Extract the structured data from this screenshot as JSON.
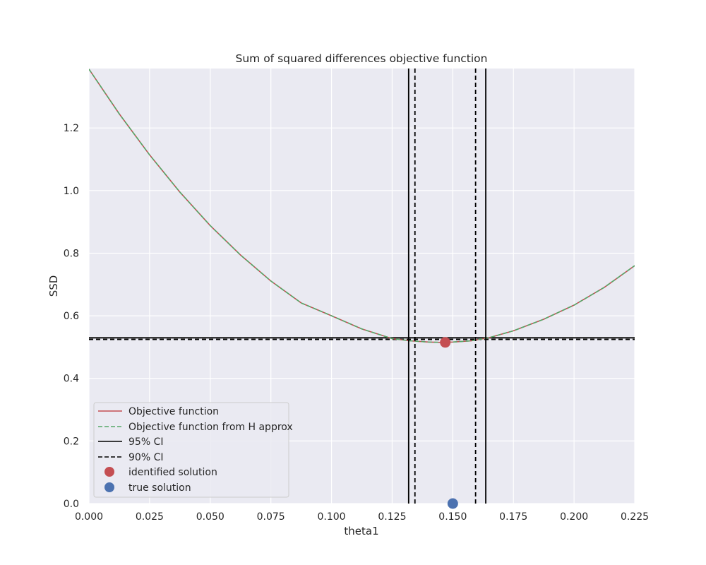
{
  "chart_data": {
    "type": "line",
    "title": "Sum of squared differences objective function",
    "xlabel": "theta1",
    "ylabel": "SSD",
    "xlim": [
      0.0,
      0.225
    ],
    "ylim": [
      0.0,
      1.39
    ],
    "x_ticks": [
      "0.000",
      "0.025",
      "0.050",
      "0.075",
      "0.100",
      "0.125",
      "0.150",
      "0.175",
      "0.200",
      "0.225"
    ],
    "y_ticks": [
      "0.0",
      "0.2",
      "0.4",
      "0.6",
      "0.8",
      "1.0",
      "1.2"
    ],
    "grid": true,
    "legend_position": "lower-left",
    "background_color": "#eaeaf2",
    "series": [
      {
        "name": "Objective function",
        "style": "solid",
        "color": "#c44e52",
        "x": [
          0.0,
          0.0125,
          0.025,
          0.0375,
          0.05,
          0.0625,
          0.075,
          0.0875,
          0.1,
          0.1125,
          0.125,
          0.1325,
          0.14,
          0.1449,
          0.15,
          0.1575,
          0.165,
          0.175,
          0.1875,
          0.2,
          0.2125,
          0.225
        ],
        "y": [
          1.388,
          1.245,
          1.114,
          0.995,
          0.888,
          0.794,
          0.711,
          0.641,
          0.6,
          0.558,
          0.527,
          0.52,
          0.516,
          0.515,
          0.516,
          0.52,
          0.53,
          0.552,
          0.589,
          0.634,
          0.691,
          0.76
        ]
      },
      {
        "name": "Objective function from H approx",
        "style": "dashed",
        "color": "#55a868",
        "x": [
          0.0,
          0.0125,
          0.025,
          0.0375,
          0.05,
          0.0625,
          0.075,
          0.0875,
          0.1,
          0.1125,
          0.125,
          0.1325,
          0.14,
          0.1449,
          0.15,
          0.1575,
          0.165,
          0.175,
          0.1875,
          0.2,
          0.2125,
          0.225
        ],
        "y": [
          1.388,
          1.245,
          1.114,
          0.995,
          0.888,
          0.794,
          0.711,
          0.641,
          0.6,
          0.558,
          0.527,
          0.52,
          0.516,
          0.515,
          0.516,
          0.52,
          0.53,
          0.552,
          0.589,
          0.634,
          0.691,
          0.76
        ]
      }
    ],
    "ci_95": {
      "name": "95% CI",
      "style": "solid",
      "color": "#000000",
      "x_lower": 0.1318,
      "x_upper": 0.1636,
      "y_level": 0.5296
    },
    "ci_90": {
      "name": "90% CI",
      "style": "dashed",
      "color": "#000000",
      "x_lower": 0.1344,
      "x_upper": 0.1594,
      "y_level": 0.5245
    },
    "points": [
      {
        "name": "identified solution",
        "color": "#c44e52",
        "x": 0.1469,
        "y": 0.515
      },
      {
        "name": "true solution",
        "color": "#4c72b0",
        "x": 0.15,
        "y": 0.0
      }
    ]
  }
}
